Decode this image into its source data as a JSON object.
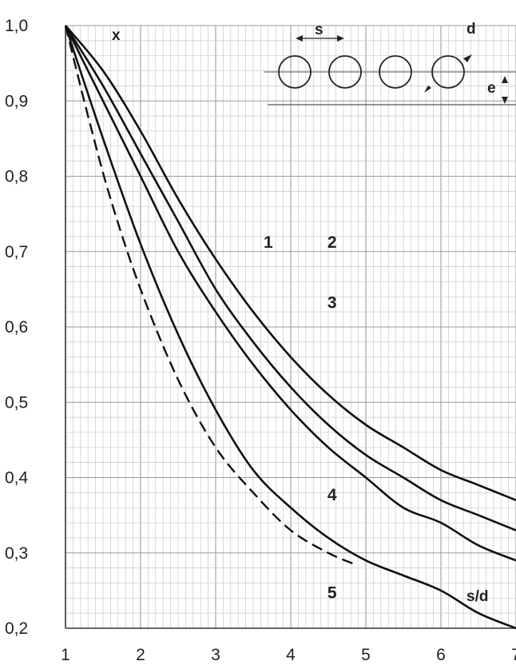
{
  "chart_data": {
    "type": "line",
    "title": "",
    "xlabel": "s/d",
    "ylabel": "x",
    "xlim": [
      1,
      7
    ],
    "ylim": [
      0.2,
      1.0
    ],
    "x_ticks": [
      "1",
      "2",
      "3",
      "4",
      "5",
      "6",
      "7"
    ],
    "y_ticks": [
      "0,2",
      "0,3",
      "0,4",
      "0,5",
      "0,6",
      "0,7",
      "0,8",
      "0,9",
      "1,0"
    ],
    "grid": true,
    "series": [
      {
        "name": "1",
        "style": "solid",
        "points": [
          [
            1,
            1.0
          ],
          [
            1.5,
            0.94
          ],
          [
            2,
            0.86
          ],
          [
            2.5,
            0.77
          ],
          [
            3,
            0.69
          ],
          [
            3.5,
            0.62
          ],
          [
            4,
            0.56
          ],
          [
            4.5,
            0.51
          ],
          [
            5,
            0.47
          ],
          [
            5.5,
            0.44
          ],
          [
            6,
            0.41
          ],
          [
            6.5,
            0.39
          ],
          [
            7,
            0.37
          ]
        ]
      },
      {
        "name": "2",
        "style": "solid",
        "points": [
          [
            1,
            1.0
          ],
          [
            1.5,
            0.92
          ],
          [
            2,
            0.83
          ],
          [
            2.5,
            0.74
          ],
          [
            3,
            0.65
          ],
          [
            3.5,
            0.58
          ],
          [
            4,
            0.52
          ],
          [
            4.5,
            0.47
          ],
          [
            5,
            0.43
          ],
          [
            5.5,
            0.4
          ],
          [
            6,
            0.37
          ],
          [
            6.5,
            0.35
          ],
          [
            7,
            0.33
          ]
        ]
      },
      {
        "name": "3",
        "style": "solid",
        "points": [
          [
            1,
            1.0
          ],
          [
            1.5,
            0.9
          ],
          [
            2,
            0.8
          ],
          [
            2.5,
            0.7
          ],
          [
            3,
            0.62
          ],
          [
            3.5,
            0.55
          ],
          [
            4,
            0.49
          ],
          [
            4.5,
            0.44
          ],
          [
            5,
            0.4
          ],
          [
            5.5,
            0.36
          ],
          [
            6,
            0.34
          ],
          [
            6.5,
            0.31
          ],
          [
            7,
            0.29
          ]
        ]
      },
      {
        "name": "4",
        "style": "solid",
        "points": [
          [
            1,
            1.0
          ],
          [
            1.5,
            0.85
          ],
          [
            2,
            0.71
          ],
          [
            2.5,
            0.59
          ],
          [
            3,
            0.49
          ],
          [
            3.5,
            0.41
          ],
          [
            4,
            0.36
          ],
          [
            4.5,
            0.32
          ],
          [
            5,
            0.29
          ],
          [
            5.5,
            0.27
          ],
          [
            6,
            0.25
          ],
          [
            6.5,
            0.22
          ],
          [
            7,
            0.2
          ]
        ]
      },
      {
        "name": "5",
        "style": "dashed",
        "points": [
          [
            1,
            1.0
          ],
          [
            1.3,
            0.88
          ],
          [
            1.6,
            0.77
          ],
          [
            2,
            0.65
          ],
          [
            2.5,
            0.53
          ],
          [
            3,
            0.44
          ],
          [
            3.5,
            0.38
          ],
          [
            4,
            0.33
          ],
          [
            4.5,
            0.3
          ],
          [
            4.85,
            0.285
          ]
        ]
      }
    ],
    "curve_labels": [
      {
        "text": "1",
        "x": 3.7,
        "y": 0.705
      },
      {
        "text": "2",
        "x": 4.55,
        "y": 0.705
      },
      {
        "text": "3",
        "x": 4.55,
        "y": 0.625
      },
      {
        "text": "4",
        "x": 4.55,
        "y": 0.37
      },
      {
        "text": "5",
        "x": 4.55,
        "y": 0.24
      }
    ],
    "inset": {
      "labels": {
        "s": "s",
        "d": "d",
        "e": "e"
      },
      "circle_count": 4
    }
  }
}
